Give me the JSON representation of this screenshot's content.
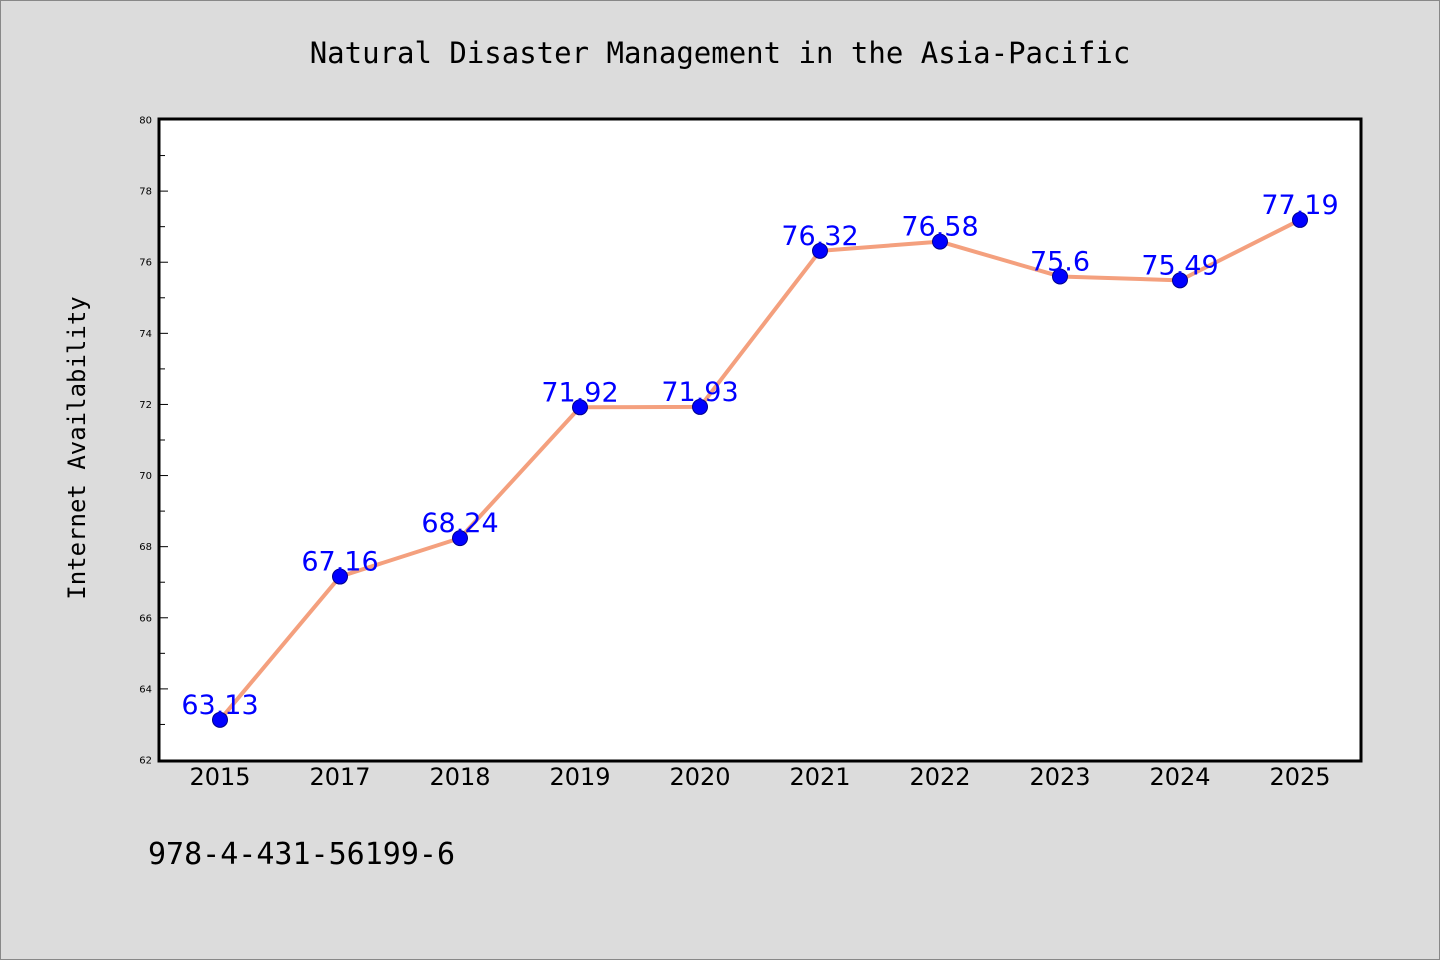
{
  "chart_data": {
    "type": "line",
    "title": "Natural Disaster Management in the Asia-Pacific",
    "xlabel": "",
    "ylabel": "Internet Availability",
    "categories": [
      "2015",
      "2017",
      "2018",
      "2019",
      "2020",
      "2021",
      "2022",
      "2023",
      "2024",
      "2025"
    ],
    "series": [
      {
        "values": [
          63.13,
          67.16,
          68.24,
          71.92,
          71.93,
          76.32,
          76.58,
          75.6,
          75.49,
          77.19
        ],
        "data_labels": [
          "63.13",
          "67.16",
          "68.24",
          "71.92",
          "71.93",
          "76.32",
          "76.58",
          "75.6",
          "75.49",
          "77.19"
        ]
      }
    ],
    "ylim": [
      62,
      80
    ],
    "yticks": [
      "62",
      "64",
      "66",
      "68",
      "70",
      "72",
      "74",
      "76",
      "78",
      "80"
    ],
    "grid": false,
    "legend": "none",
    "colors": {
      "line": "#f4a07e",
      "marker": "#0000ff",
      "label": "#0000ff",
      "plot_background": "#ffffff",
      "page_background": "#dcdcdc"
    }
  },
  "footer_text": "978-4-431-56199-6"
}
